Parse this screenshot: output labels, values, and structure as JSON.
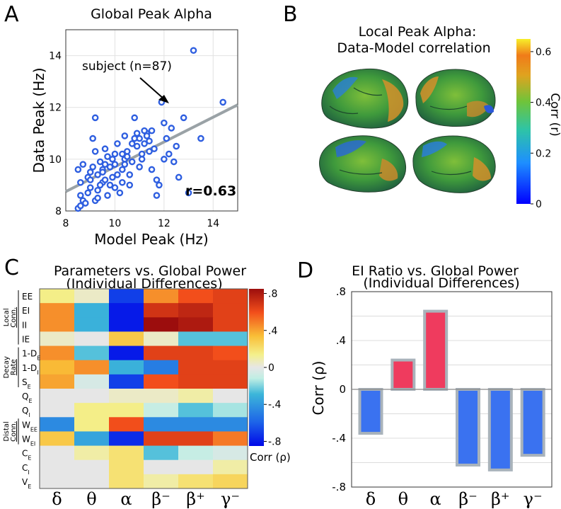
{
  "panels": {
    "A": {
      "letter": "A"
    },
    "B": {
      "letter": "B"
    },
    "C": {
      "letter": "C"
    },
    "D": {
      "letter": "D"
    }
  },
  "chart_data": [
    {
      "id": "A",
      "type": "scatter",
      "title": "Global Peak Alpha",
      "xlabel": "Model Peak (Hz)",
      "ylabel": "Data Peak (Hz)",
      "xlim": [
        8,
        15
      ],
      "ylim": [
        8,
        15
      ],
      "xticks": [
        "8",
        "10",
        "12",
        "14"
      ],
      "yticks": [
        "8",
        "10",
        "12",
        "14"
      ],
      "annotation": "subject (n=87)",
      "stat": "r=0.63",
      "fit_line": {
        "x": [
          8,
          15
        ],
        "y": [
          8.75,
          12.1
        ]
      },
      "points": [
        [
          8.5,
          8.1
        ],
        [
          8.6,
          8.2
        ],
        [
          8.6,
          8.6
        ],
        [
          8.7,
          8.4
        ],
        [
          8.8,
          8.3
        ],
        [
          8.6,
          9.1
        ],
        [
          8.5,
          9.6
        ],
        [
          8.7,
          9.8
        ],
        [
          8.9,
          9.3
        ],
        [
          9.0,
          8.9
        ],
        [
          9.0,
          9.5
        ],
        [
          9.1,
          9.7
        ],
        [
          9.2,
          8.4
        ],
        [
          9.3,
          8.8
        ],
        [
          9.3,
          9.4
        ],
        [
          9.4,
          9.9
        ],
        [
          9.2,
          10.3
        ],
        [
          9.1,
          10.8
        ],
        [
          9.2,
          11.6
        ],
        [
          9.5,
          9.1
        ],
        [
          9.5,
          9.6
        ],
        [
          9.6,
          9.8
        ],
        [
          9.6,
          10.4
        ],
        [
          9.7,
          8.6
        ],
        [
          9.8,
          9.0
        ],
        [
          9.8,
          9.7
        ],
        [
          9.9,
          9.3
        ],
        [
          10.0,
          9.8
        ],
        [
          10.0,
          10.2
        ],
        [
          10.1,
          10.6
        ],
        [
          10.2,
          8.7
        ],
        [
          10.3,
          9.1
        ],
        [
          10.3,
          9.6
        ],
        [
          10.4,
          10.0
        ],
        [
          10.4,
          10.9
        ],
        [
          10.5,
          10.3
        ],
        [
          10.6,
          9.4
        ],
        [
          10.7,
          9.9
        ],
        [
          10.8,
          10.8
        ],
        [
          10.8,
          11.6
        ],
        [
          10.9,
          10.5
        ],
        [
          11.0,
          9.7
        ],
        [
          11.1,
          10.2
        ],
        [
          11.2,
          10.6
        ],
        [
          11.3,
          11.0
        ],
        [
          11.4,
          10.7
        ],
        [
          11.5,
          11.1
        ],
        [
          11.5,
          9.6
        ],
        [
          11.6,
          10.4
        ],
        [
          11.7,
          9.2
        ],
        [
          11.7,
          8.6
        ],
        [
          11.8,
          9.0
        ],
        [
          11.9,
          12.2
        ],
        [
          12.0,
          10.0
        ],
        [
          12.1,
          10.8
        ],
        [
          12.3,
          11.2
        ],
        [
          12.4,
          9.9
        ],
        [
          12.5,
          10.5
        ],
        [
          12.6,
          9.3
        ],
        [
          12.8,
          11.6
        ],
        [
          13.0,
          8.7
        ],
        [
          13.2,
          14.2
        ],
        [
          13.5,
          10.8
        ],
        [
          14.4,
          12.2
        ],
        [
          9.0,
          9.2
        ],
        [
          9.4,
          9.0
        ],
        [
          9.7,
          10.1
        ],
        [
          10.1,
          9.4
        ],
        [
          10.5,
          10.1
        ],
        [
          10.9,
          11.0
        ],
        [
          11.2,
          11.1
        ],
        [
          9.5,
          9.5
        ],
        [
          9.9,
          10.0
        ],
        [
          10.3,
          10.2
        ],
        [
          10.7,
          10.6
        ],
        [
          11.0,
          10.8
        ],
        [
          11.3,
          10.9
        ],
        [
          9.3,
          8.5
        ],
        [
          10.0,
          8.9
        ],
        [
          10.6,
          9.0
        ],
        [
          11.1,
          10.0
        ],
        [
          12.0,
          11.4
        ],
        [
          8.9,
          8.7
        ],
        [
          9.6,
          9.2
        ],
        [
          10.4,
          9.8
        ],
        [
          11.4,
          10.3
        ],
        [
          12.2,
          10.2
        ]
      ]
    },
    {
      "id": "B",
      "type": "heatmap",
      "title_line1": "Local Peak Alpha:",
      "title_line2": "Data-Model correlation",
      "colorbar_label": "Corr (r)",
      "colorbar_ticks": [
        "0",
        "0.2",
        "0.4",
        "0.6"
      ],
      "colorbar_range": [
        0,
        0.65
      ]
    },
    {
      "id": "C",
      "type": "heatmap",
      "title_line1": "Parameters vs. Global Power",
      "title_line2": "(Individual Differences)",
      "columns": [
        "δ",
        "θ",
        "α",
        "β⁻",
        "β⁺",
        "γ⁻"
      ],
      "rows": [
        "EE",
        "EI",
        "II",
        "IE",
        "1-D",
        "1-D",
        "S",
        "Q",
        "Q",
        "W",
        "W",
        "C",
        "C",
        "V"
      ],
      "row_subscripts": [
        "",
        "",
        "",
        "",
        "E",
        "I",
        "E",
        "E",
        "I",
        "EE",
        "EI",
        "E",
        "I",
        "E"
      ],
      "groups": [
        {
          "label_line1": "Local",
          "label_line2": "Conn.",
          "rows": [
            0,
            3
          ]
        },
        {
          "label_line1": "Decay",
          "label_line2": "Rate",
          "rows": [
            4,
            6
          ]
        },
        {
          "label_line1": "Distal",
          "label_line2": "Conn.",
          "rows": [
            9,
            10
          ]
        }
      ],
      "values": [
        [
          0.15,
          0.05,
          -0.7,
          0.45,
          0.6,
          0.65
        ],
        [
          0.45,
          -0.3,
          -0.8,
          0.7,
          0.75,
          0.65
        ],
        [
          0.45,
          -0.3,
          -0.8,
          0.85,
          0.8,
          0.65
        ],
        [
          0.05,
          0.0,
          0.3,
          0.05,
          -0.25,
          -0.25
        ],
        [
          0.45,
          -0.25,
          -0.8,
          0.65,
          0.65,
          0.6
        ],
        [
          0.35,
          0.45,
          -0.3,
          -0.5,
          0.65,
          0.65
        ],
        [
          0.4,
          -0.05,
          -0.7,
          0.6,
          0.65,
          0.65
        ],
        [
          0.0,
          0.0,
          0.05,
          0.05,
          0.1,
          0.0
        ],
        [
          0.0,
          0.15,
          0.15,
          -0.1,
          -0.25,
          -0.15
        ],
        [
          -0.45,
          0.15,
          0.6,
          -0.45,
          -0.45,
          -0.45
        ],
        [
          0.3,
          -0.35,
          -0.75,
          0.65,
          0.65,
          0.5
        ],
        [
          0.0,
          0.1,
          0.2,
          -0.25,
          -0.1,
          -0.05
        ],
        [
          0.0,
          0.0,
          0.2,
          0.0,
          0.0,
          0.1
        ],
        [
          0.0,
          0.0,
          0.2,
          0.1,
          0.2,
          0.25
        ]
      ],
      "colorbar_ticks": [
        ".8",
        ".4",
        "0",
        "-.4",
        "-.8"
      ],
      "colorbar_label": "Corr (ρ)",
      "vlim": [
        -0.85,
        0.85
      ]
    },
    {
      "id": "D",
      "type": "bar",
      "title_line1": "EI Ratio vs. Global Power",
      "title_line2": "(Individual Differences)",
      "categories": [
        "δ",
        "θ",
        "α",
        "β⁻",
        "β⁺",
        "γ⁻"
      ],
      "values": [
        -0.36,
        0.24,
        0.64,
        -0.62,
        -0.66,
        -0.54
      ],
      "ylabel": "Corr (ρ)",
      "ylim": [
        -0.8,
        0.8
      ],
      "yticks": [
        ".8",
        ".4",
        "0",
        "-.4",
        "-.8"
      ],
      "pos_color": "#ef3b5e",
      "neg_color": "#3a72f0",
      "edge_color": "#a9b3bb"
    }
  ]
}
